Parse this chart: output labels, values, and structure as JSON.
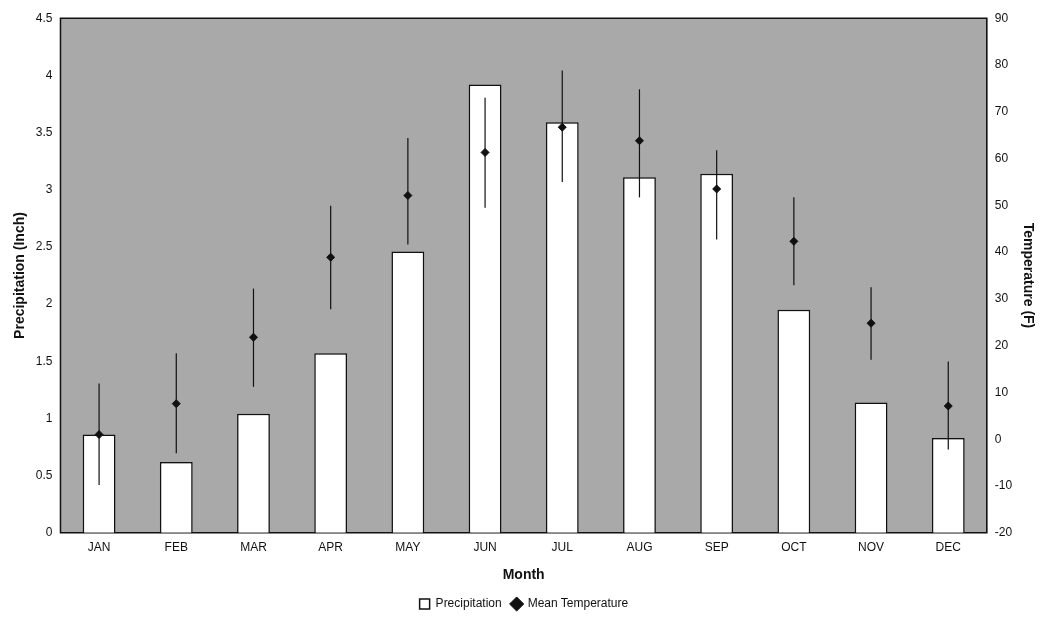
{
  "chart_data": {
    "type": "bar",
    "xlabel": "Month",
    "ylabel": "Precipitation (Inch)",
    "y2label": "Temperature (F)",
    "categories": [
      "JAN",
      "FEB",
      "MAR",
      "APR",
      "MAY",
      "JUN",
      "JUL",
      "AUG",
      "SEP",
      "OCT",
      "NOV",
      "DEC"
    ],
    "series": [
      {
        "name": "Precipitation",
        "color": "#ffffff",
        "values": [
          0.86,
          0.62,
          1.04,
          1.57,
          2.46,
          3.92,
          3.59,
          3.11,
          3.14,
          1.95,
          1.14,
          0.83
        ]
      },
      {
        "name": "Mean Temperature",
        "type": "scatter",
        "axis": "y2",
        "color": "#111111",
        "marker": "diamond",
        "values": [
          1,
          7.6,
          21.8,
          38.9,
          52.1,
          61.3,
          66.7,
          63.8,
          53.5,
          42.3,
          24.8,
          7.1
        ],
        "errors": [
          [
            -9.8,
            11.9
          ],
          [
            -3,
            18.4
          ],
          [
            11.2,
            32.2
          ],
          [
            27.8,
            49.9
          ],
          [
            41.6,
            64.4
          ],
          [
            49.5,
            73
          ],
          [
            55,
            78.8
          ],
          [
            51.7,
            74.8
          ],
          [
            42.7,
            61.8
          ],
          [
            32.9,
            51.7
          ],
          [
            17,
            32.5
          ],
          [
            -2.2,
            16.6
          ]
        ]
      }
    ],
    "ylim": [
      0,
      4.5
    ],
    "yticks": [
      0,
      0.5,
      1,
      1.5,
      2,
      2.5,
      3,
      3.5,
      4,
      4.5
    ],
    "y2lim": [
      -20,
      90
    ],
    "y2ticks": [
      -20,
      -10,
      0,
      10,
      20,
      30,
      40,
      50,
      60,
      70,
      80,
      90
    ],
    "grid": false,
    "legend": "bottom"
  }
}
